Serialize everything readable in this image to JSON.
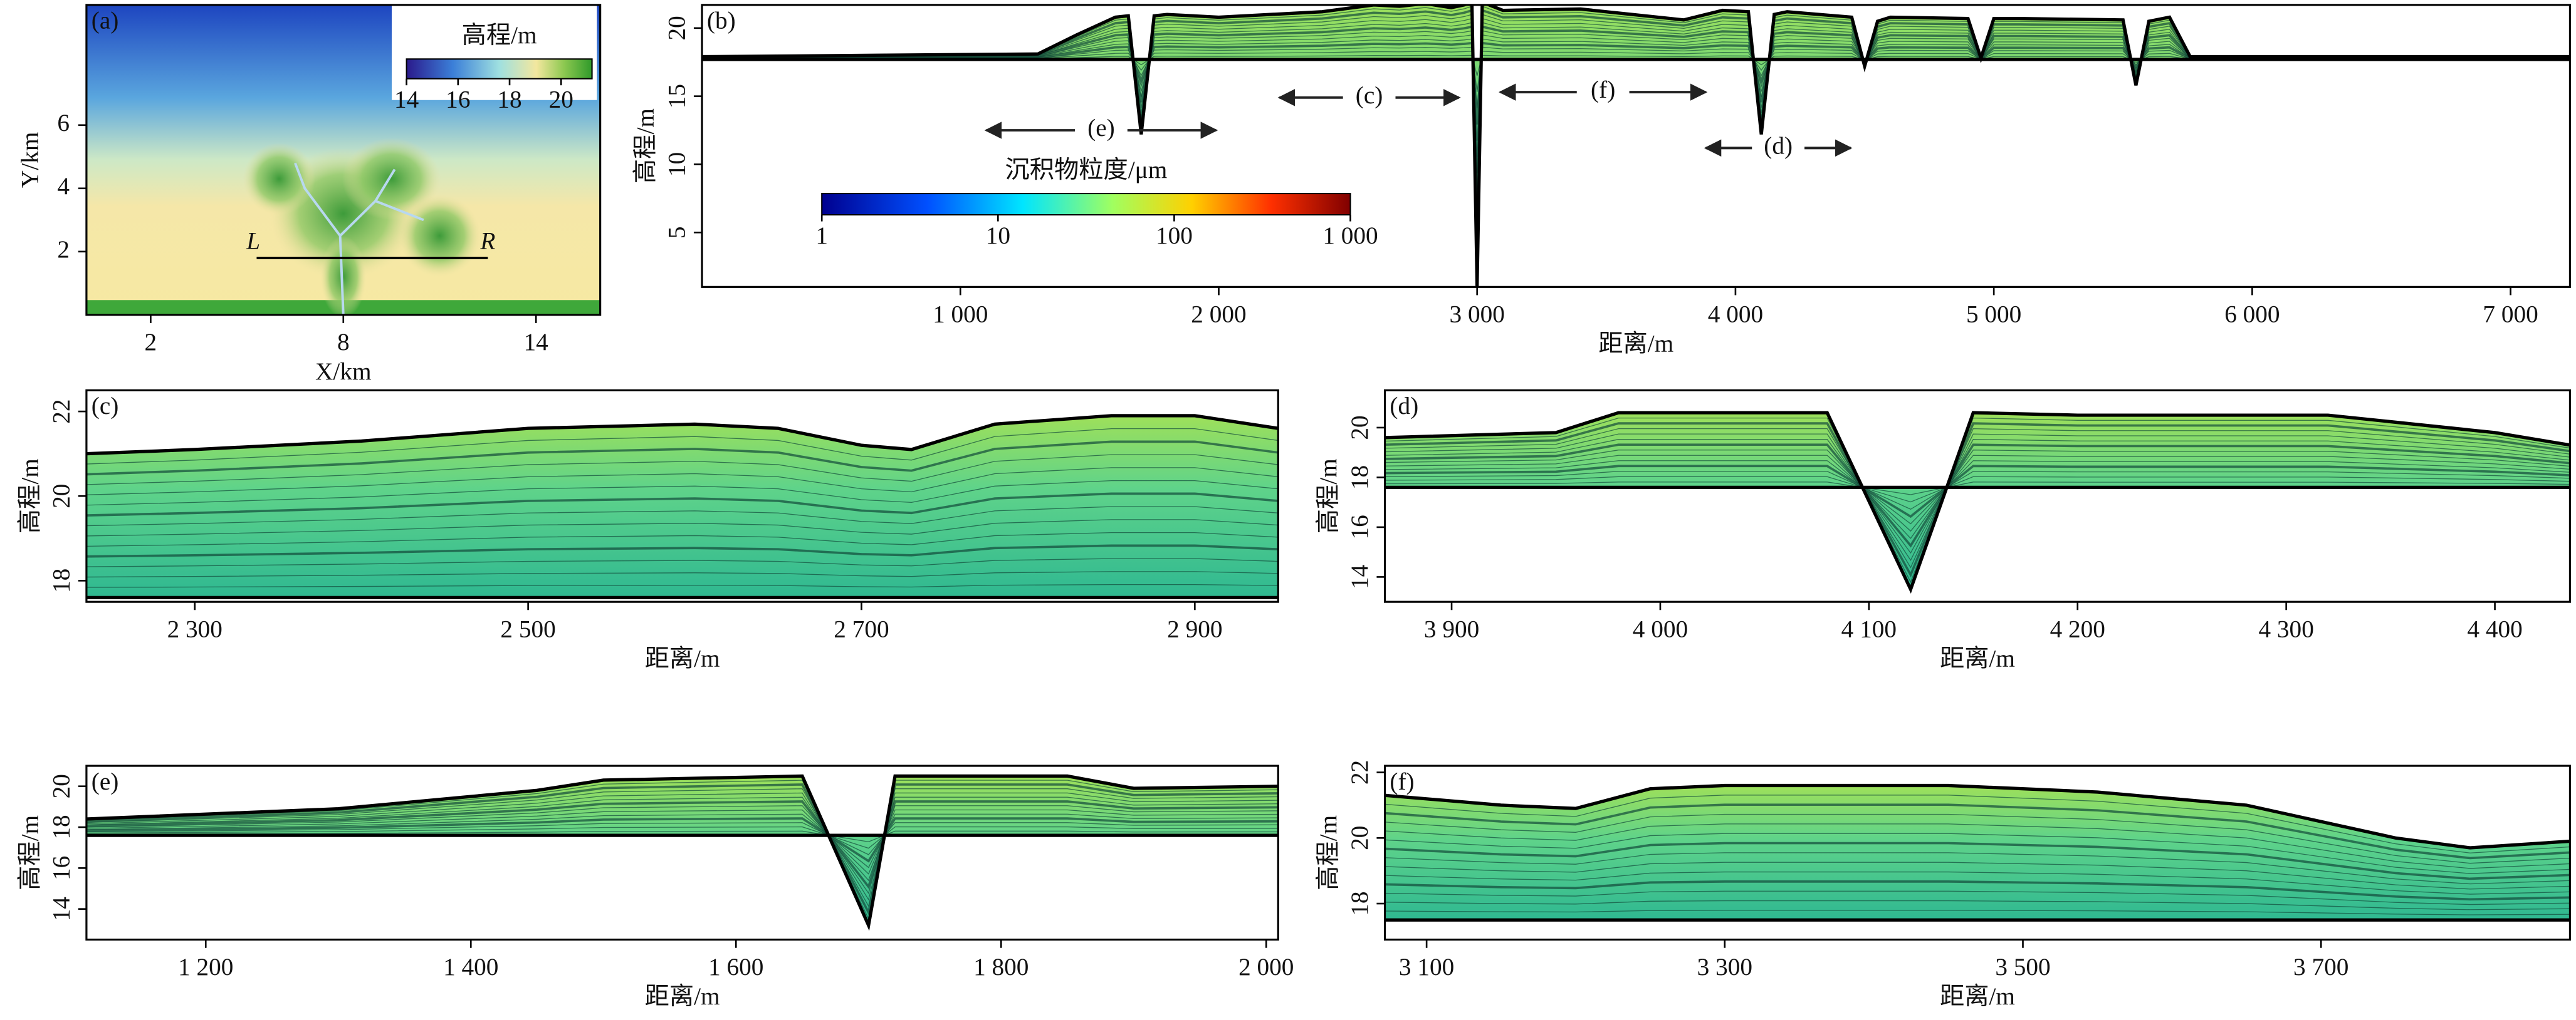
{
  "chart_data": [
    {
      "type": "map",
      "title": "(a)",
      "xlabel": "X/km",
      "ylabel": "Y/km",
      "xlim": [
        0,
        16
      ],
      "ylim": [
        0,
        9.8
      ],
      "xticks": [
        2,
        8,
        14
      ],
      "yticks": [
        2,
        4,
        6
      ],
      "colorbar": {
        "label": "高程/m",
        "lim": [
          14,
          21.2
        ],
        "ticks": [
          14,
          16,
          18,
          20
        ]
      },
      "profile": {
        "x": [
          5.3,
          12.5
        ],
        "y": [
          1.8,
          1.8
        ],
        "labels": [
          "L",
          "R"
        ]
      }
    },
    {
      "type": "section",
      "title": "(b)",
      "xlabel": "距离/m",
      "ylabel": "高程/m",
      "xlim": [
        0,
        7230
      ],
      "ylim": [
        1,
        21.7
      ],
      "xticks": [
        {
          "value": 1000,
          "label": "1 000"
        },
        {
          "value": 2000,
          "label": "2 000"
        },
        {
          "value": 3000,
          "label": "3 000"
        },
        {
          "value": 4000,
          "label": "4 000"
        },
        {
          "value": 5000,
          "label": "5 000"
        },
        {
          "value": 6000,
          "label": "6 000"
        },
        {
          "value": 7000,
          "label": "7 000"
        }
      ],
      "yticks": [
        5,
        10,
        15,
        20
      ],
      "series": [
        {
          "color": "#000000",
          "x": [
            0,
            1300,
            1450,
            1600,
            1650,
            1700,
            1750,
            1800,
            2000,
            2400,
            2600,
            2700,
            2800,
            2900,
            2950,
            2980,
            3000,
            3020,
            3060,
            3100,
            3400,
            3600,
            3800,
            3950,
            4050,
            4100,
            4150,
            4200,
            4450,
            4500,
            4550,
            4600,
            4900,
            4950,
            5000,
            5100,
            5500,
            5550,
            5600,
            5680,
            5760,
            7230
          ],
          "values": [
            17.9,
            18.1,
            19.5,
            20.8,
            20.9,
            12.2,
            20.9,
            21.0,
            20.8,
            21.2,
            21.7,
            21.6,
            21.8,
            21.5,
            21.7,
            21.9,
            1.0,
            21.9,
            21.6,
            21.3,
            21.4,
            21.0,
            20.6,
            21.3,
            21.2,
            12.2,
            21.0,
            21.2,
            20.8,
            17.2,
            20.5,
            20.8,
            20.7,
            17.8,
            20.7,
            20.7,
            20.6,
            15.8,
            20.5,
            20.8,
            17.9,
            17.9
          ]
        },
        {
          "color": "#000000",
          "x": [
            0,
            7230
          ],
          "values": [
            17.7,
            17.7
          ]
        }
      ],
      "colorbar": {
        "label": "沉积物粒度/μm",
        "lim": [
          1,
          1000
        ],
        "log": true,
        "ticks": [
          1,
          10,
          100,
          {
            "value": 1000,
            "label": "1 000"
          }
        ]
      },
      "annotations": [
        {
          "text": "(e)",
          "x": [
            1100,
            1990
          ],
          "y": 12.5
        },
        {
          "text": "(c)",
          "x": [
            2235,
            2930
          ],
          "y": 14.9
        },
        {
          "text": "(f)",
          "x": [
            3090,
            3885
          ],
          "y": 15.3
        },
        {
          "text": "(d)",
          "x": [
            3885,
            4446
          ],
          "y": 11.2
        }
      ]
    },
    {
      "type": "section",
      "title": "(c)",
      "xlabel": "距离/m",
      "ylabel": "高程/m",
      "xlim": [
        2235,
        2950
      ],
      "ylim": [
        17.5,
        22.5
      ],
      "xticks": [
        {
          "value": 2300,
          "label": "2 300"
        },
        {
          "value": 2500,
          "label": "2 500"
        },
        {
          "value": 2700,
          "label": "2 700"
        },
        {
          "value": 2900,
          "label": "2 900"
        }
      ],
      "yticks": [
        18,
        20,
        22
      ],
      "series": [
        {
          "color": "#000000",
          "x": [
            2235,
            2300,
            2400,
            2500,
            2600,
            2650,
            2700,
            2730,
            2780,
            2850,
            2900,
            2950
          ],
          "values": [
            21.0,
            21.1,
            21.3,
            21.6,
            21.7,
            21.6,
            21.2,
            21.1,
            21.7,
            21.9,
            21.9,
            21.6
          ]
        },
        {
          "color": "#000000",
          "x": [
            2235,
            2950
          ],
          "values": [
            17.6,
            17.6
          ]
        }
      ]
    },
    {
      "type": "section",
      "title": "(d)",
      "xlabel": "距离/m",
      "ylabel": "高程/m",
      "xlim": [
        3868,
        4436
      ],
      "ylim": [
        13,
        21.5
      ],
      "xticks": [
        {
          "value": 3900,
          "label": "3 900"
        },
        {
          "value": 4000,
          "label": "4 000"
        },
        {
          "value": 4100,
          "label": "4 100"
        },
        {
          "value": 4200,
          "label": "4 200"
        },
        {
          "value": 4300,
          "label": "4 300"
        },
        {
          "value": 4400,
          "label": "4 400"
        }
      ],
      "yticks": [
        14,
        16,
        18,
        20
      ],
      "series": [
        {
          "color": "#000000",
          "x": [
            3868,
            3950,
            3980,
            4080,
            4120,
            4150,
            4200,
            4320,
            4400,
            4436
          ],
          "values": [
            19.6,
            19.8,
            20.6,
            20.6,
            13.5,
            20.6,
            20.5,
            20.5,
            19.8,
            19.3
          ]
        },
        {
          "color": "#000000",
          "x": [
            3868,
            4436
          ],
          "values": [
            17.6,
            17.6
          ]
        }
      ]
    },
    {
      "type": "section",
      "title": "(e)",
      "xlabel": "距离/m",
      "ylabel": "高程/m",
      "xlim": [
        1110,
        2009
      ],
      "ylim": [
        12.5,
        21
      ],
      "xticks": [
        {
          "value": 1200,
          "label": "1 200"
        },
        {
          "value": 1400,
          "label": "1 400"
        },
        {
          "value": 1600,
          "label": "1 600"
        },
        {
          "value": 1800,
          "label": "1 800"
        },
        {
          "value": 2000,
          "label": "2 000"
        }
      ],
      "yticks": [
        14,
        16,
        18,
        20
      ],
      "series": [
        {
          "color": "#000000",
          "x": [
            1110,
            1300,
            1450,
            1500,
            1650,
            1700,
            1720,
            1850,
            1900,
            2009
          ],
          "values": [
            18.4,
            18.9,
            19.8,
            20.3,
            20.5,
            13.2,
            20.5,
            20.5,
            19.9,
            20.0
          ]
        },
        {
          "color": "#000000",
          "x": [
            1110,
            2009
          ],
          "values": [
            17.6,
            17.6
          ]
        }
      ]
    },
    {
      "type": "section",
      "title": "(f)",
      "xlabel": "距离/m",
      "ylabel": "高程/m",
      "xlim": [
        3072,
        3867
      ],
      "ylim": [
        16.9,
        22.2
      ],
      "xticks": [
        {
          "value": 3100,
          "label": "3 100"
        },
        {
          "value": 3300,
          "label": "3 300"
        },
        {
          "value": 3500,
          "label": "3 500"
        },
        {
          "value": 3700,
          "label": "3 700"
        }
      ],
      "yticks": [
        18,
        20,
        22
      ],
      "series": [
        {
          "color": "#000000",
          "x": [
            3072,
            3150,
            3200,
            3250,
            3300,
            3450,
            3550,
            3650,
            3750,
            3800,
            3867
          ],
          "values": [
            21.3,
            21.0,
            20.9,
            21.5,
            21.6,
            21.6,
            21.4,
            21.0,
            20.0,
            19.7,
            19.9
          ]
        },
        {
          "color": "#000000",
          "x": [
            3072,
            3867
          ],
          "values": [
            17.5,
            17.5
          ]
        }
      ]
    }
  ]
}
